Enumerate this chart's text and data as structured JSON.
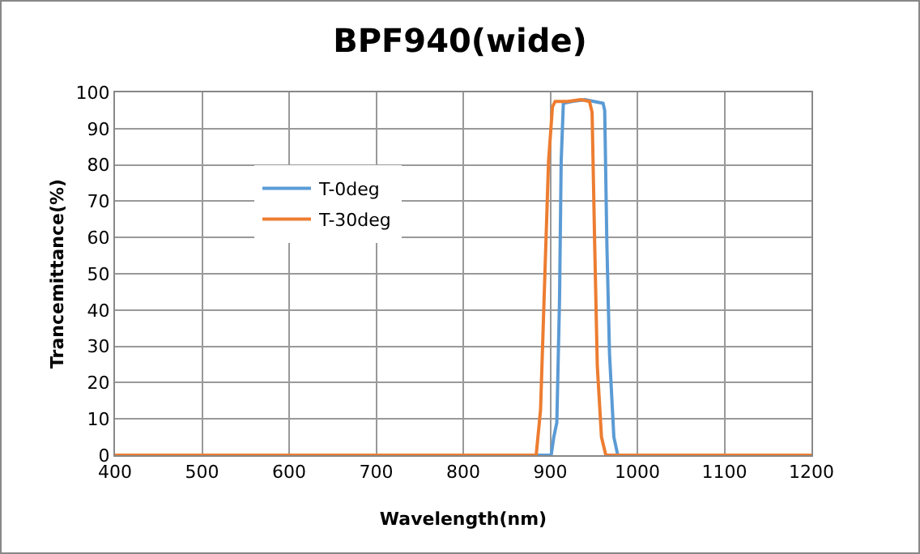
{
  "chart_data": {
    "type": "line",
    "title": "BPF940(wide)",
    "xlabel": "Wavelength(nm)",
    "ylabel": "Trancemittance(%)",
    "xlim": [
      400,
      1200
    ],
    "xticks": [
      400,
      500,
      600,
      700,
      800,
      900,
      1000,
      1100,
      1200
    ],
    "ylim": [
      0,
      100
    ],
    "yticks": [
      0,
      10,
      20,
      30,
      40,
      50,
      60,
      70,
      80,
      90,
      100
    ],
    "grid": true,
    "legend": "top left",
    "marker": "none",
    "line_style": "solid",
    "series": [
      {
        "name": "T-0deg",
        "color": "#5b9bd5",
        "x": [
          400,
          880,
          901,
          904,
          907.5,
          910.6,
          912.5,
          915,
          925,
          940,
          950,
          960.6,
          962.5,
          965,
          968,
          973,
          977.5,
          1000,
          1200
        ],
        "values": [
          0,
          0,
          0,
          5,
          9,
          43,
          81,
          97,
          97.5,
          98,
          97.5,
          97,
          95,
          58,
          28,
          5,
          0,
          0,
          0
        ]
      },
      {
        "name": "T-30deg",
        "color": "#ed7d31",
        "x": [
          400,
          860,
          883.8,
          888.8,
          893.8,
          898,
          902.5,
          905.6,
          920,
          935,
          945,
          948,
          951,
          954,
          958.8,
          963.8,
          1000,
          1200
        ],
        "values": [
          0,
          0,
          0,
          12.5,
          50,
          81,
          96,
          97.5,
          97.5,
          98,
          97.5,
          94.5,
          58,
          24.6,
          5,
          0,
          0,
          0
        ]
      }
    ]
  }
}
